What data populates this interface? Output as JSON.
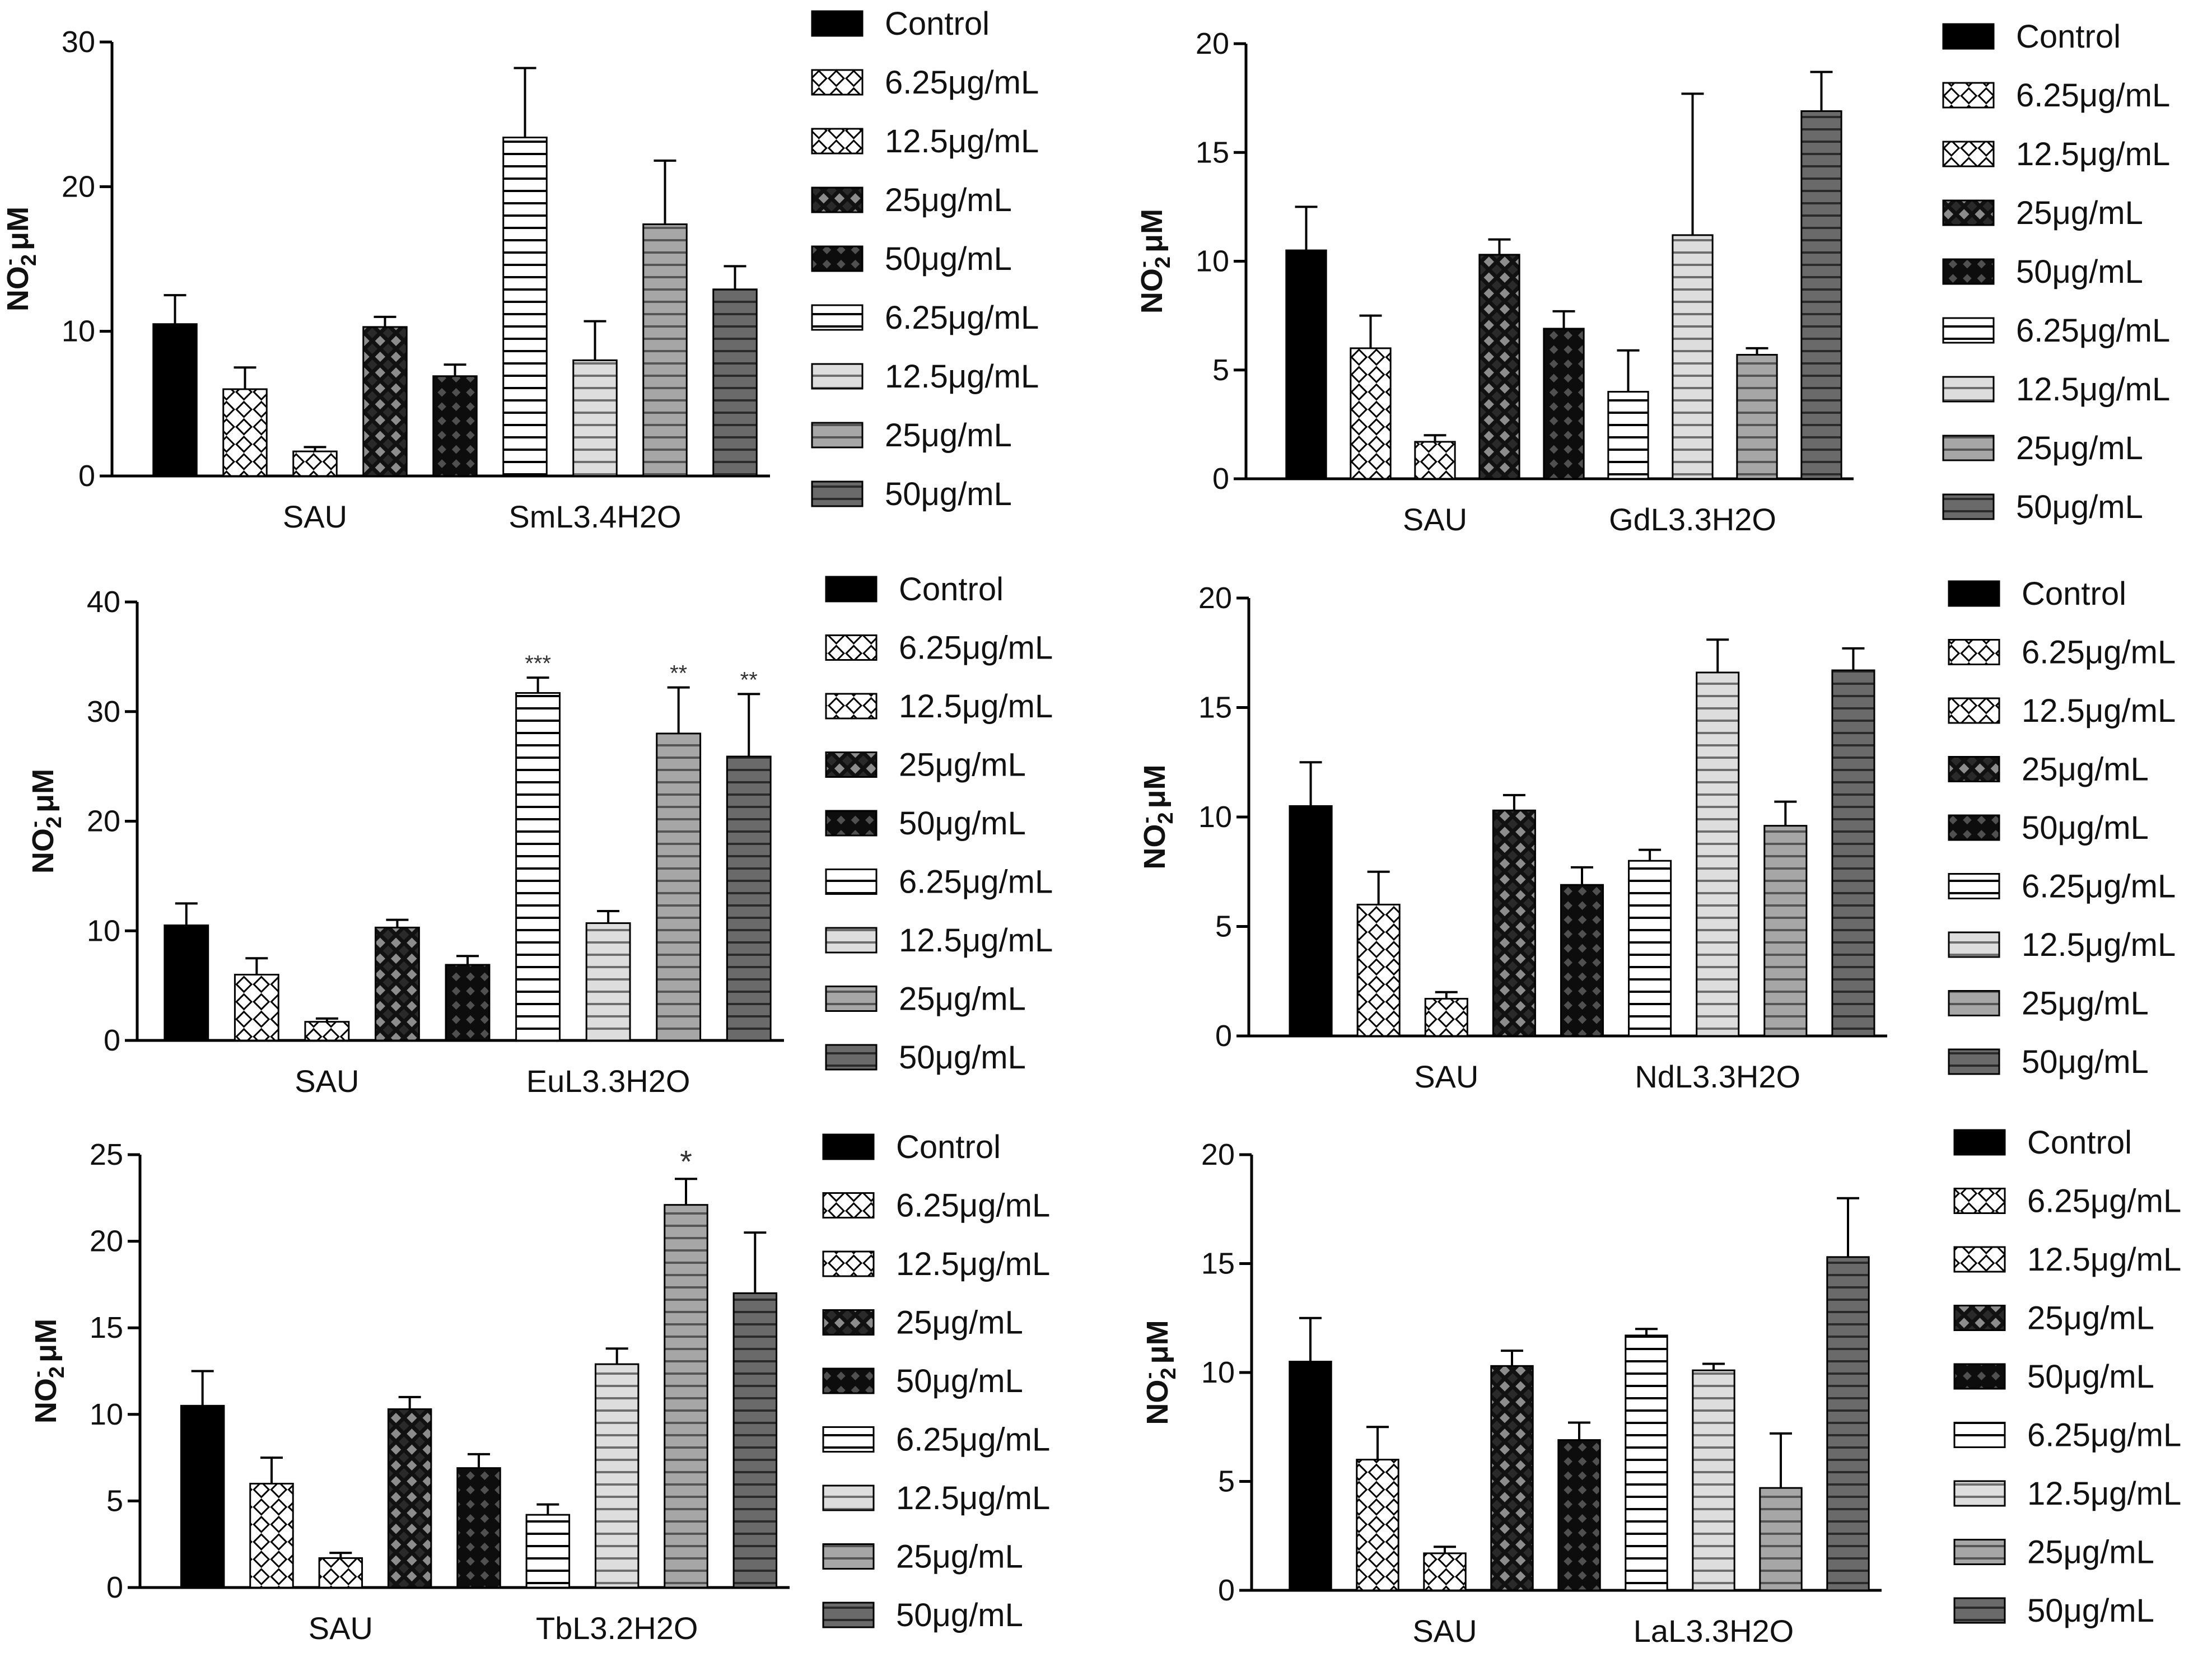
{
  "chart_data": [
    {
      "type": "bar",
      "ylabel": "NO2- μM",
      "ylim": [
        0,
        30
      ],
      "yticks": [
        0,
        10,
        20,
        30
      ],
      "group_labels": [
        "SAU",
        "SmL3.4H2O"
      ],
      "legend": [
        "Control",
        "6.25μg/mL",
        "12.5μg/mL",
        "25μg/mL",
        "50μg/mL",
        "6.25μg/mL",
        "12.5μg/mL",
        "25μg/mL",
        "50μg/mL"
      ],
      "values": [
        10.5,
        6.0,
        1.7,
        10.3,
        6.9,
        23.4,
        8.0,
        17.4,
        12.9
      ],
      "errors": [
        2.0,
        1.5,
        0.3,
        0.7,
        0.8,
        4.8,
        2.7,
        4.4,
        1.6
      ],
      "significance": [
        "",
        "",
        "",
        "",
        "",
        "",
        "",
        "",
        ""
      ]
    },
    {
      "type": "bar",
      "ylabel": "NO2- μM",
      "ylim": [
        0,
        20
      ],
      "yticks": [
        0,
        5,
        10,
        15,
        20
      ],
      "group_labels": [
        "SAU",
        "GdL3.3H2O"
      ],
      "legend": [
        "Control",
        "6.25μg/mL",
        "12.5μg/mL",
        "25μg/mL",
        "50μg/mL",
        "6.25μg/mL",
        "12.5μg/mL",
        "25μg/mL",
        "50μg/mL"
      ],
      "values": [
        10.5,
        6.0,
        1.7,
        10.3,
        6.9,
        4.0,
        11.2,
        5.7,
        16.9
      ],
      "errors": [
        2.0,
        1.5,
        0.3,
        0.7,
        0.8,
        1.9,
        6.5,
        0.3,
        1.8
      ],
      "significance": [
        "",
        "",
        "",
        "",
        "",
        "",
        "",
        "",
        ""
      ]
    },
    {
      "type": "bar",
      "ylabel": "NO2- μM",
      "ylim": [
        0,
        40
      ],
      "yticks": [
        0,
        10,
        20,
        30,
        40
      ],
      "group_labels": [
        "SAU",
        "EuL3.3H2O"
      ],
      "legend": [
        "Control",
        "6.25μg/mL",
        "12.5μg/mL",
        "25μg/mL",
        "50μg/mL",
        "6.25μg/mL",
        "12.5μg/mL",
        "25μg/mL",
        "50μg/mL"
      ],
      "values": [
        10.5,
        6.0,
        1.7,
        10.3,
        6.9,
        31.7,
        10.7,
        28.0,
        25.9
      ],
      "errors": [
        2.0,
        1.5,
        0.3,
        0.7,
        0.8,
        1.4,
        1.1,
        4.2,
        5.7
      ],
      "significance": [
        "",
        "",
        "",
        "",
        "",
        "***",
        "",
        "**",
        "**"
      ]
    },
    {
      "type": "bar",
      "ylabel": "NO2- μM",
      "ylim": [
        0,
        20
      ],
      "yticks": [
        0,
        5,
        10,
        15,
        20
      ],
      "group_labels": [
        "SAU",
        "NdL3.3H2O"
      ],
      "legend": [
        "Control",
        "6.25μg/mL",
        "12.5μg/mL",
        "25μg/mL",
        "50μg/mL",
        "6.25μg/mL",
        "12.5μg/mL",
        "25μg/mL",
        "50μg/mL"
      ],
      "values": [
        10.5,
        6.0,
        1.7,
        10.3,
        6.9,
        8.0,
        16.6,
        9.6,
        16.7
      ],
      "errors": [
        2.0,
        1.5,
        0.3,
        0.7,
        0.8,
        0.5,
        1.5,
        1.1,
        1.0
      ],
      "significance": [
        "",
        "",
        "",
        "",
        "",
        "",
        "",
        "",
        ""
      ]
    },
    {
      "type": "bar",
      "ylabel": "NO2- μM",
      "ylim": [
        0,
        25
      ],
      "yticks": [
        0,
        5,
        10,
        15,
        20,
        25
      ],
      "group_labels": [
        "SAU",
        "TbL3.2H2O"
      ],
      "legend": [
        "Control",
        "6.25μg/mL",
        "12.5μg/mL",
        "25μg/mL",
        "50μg/mL",
        "6.25μg/mL",
        "12.5μg/mL",
        "25μg/mL",
        "50μg/mL"
      ],
      "values": [
        10.5,
        6.0,
        1.7,
        10.3,
        6.9,
        4.2,
        12.9,
        22.1,
        17.0
      ],
      "errors": [
        2.0,
        1.5,
        0.3,
        0.7,
        0.8,
        0.6,
        0.9,
        1.5,
        3.5
      ],
      "significance": [
        "",
        "",
        "",
        "",
        "",
        "",
        "",
        "*",
        ""
      ]
    },
    {
      "type": "bar",
      "ylabel": "NO2- μM",
      "ylim": [
        0,
        20
      ],
      "yticks": [
        0,
        5,
        10,
        15,
        20
      ],
      "group_labels": [
        "SAU",
        "LaL3.3H2O"
      ],
      "legend": [
        "Control",
        "6.25μg/mL",
        "12.5μg/mL",
        "25μg/mL",
        "50μg/mL",
        "6.25μg/mL",
        "12.5μg/mL",
        "25μg/mL",
        "50μg/mL"
      ],
      "values": [
        10.5,
        6.0,
        1.7,
        10.3,
        6.9,
        11.7,
        10.1,
        4.7,
        15.3
      ],
      "errors": [
        2.0,
        1.5,
        0.3,
        0.7,
        0.8,
        0.3,
        0.3,
        2.5,
        2.7
      ],
      "significance": [
        "",
        "",
        "",
        "",
        "",
        "",
        "",
        "",
        ""
      ]
    }
  ]
}
